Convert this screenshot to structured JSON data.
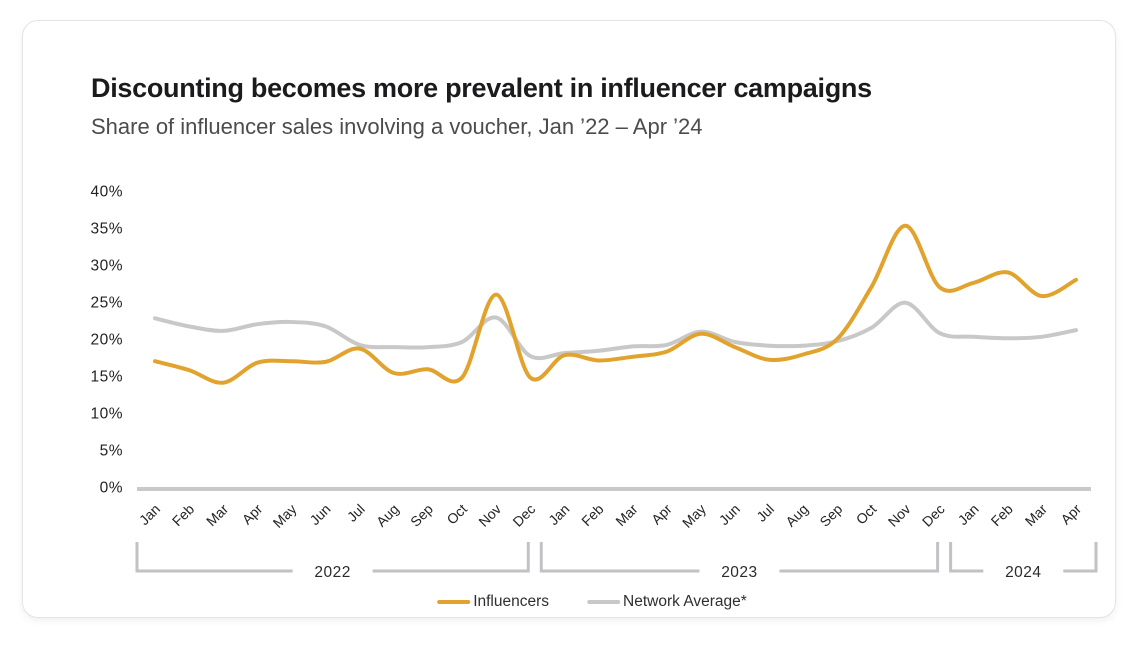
{
  "header": {
    "title": "Discounting becomes more prevalent in influencer campaigns",
    "subtitle": "Share of influencer sales involving a voucher, Jan ’22 – Apr ’24"
  },
  "legend": {
    "items": [
      {
        "label": "Influencers",
        "color": "#E1A32D"
      },
      {
        "label": "Network Average*",
        "color": "#C8C8C8"
      }
    ]
  },
  "chart_data": {
    "type": "line",
    "title": "Discounting becomes more prevalent in influencer campaigns",
    "subtitle": "Share of influencer sales involving a voucher, Jan ’22 – Apr ’24",
    "x_labels": [
      "Jan",
      "Feb",
      "Mar",
      "Apr",
      "May",
      "Jun",
      "Jul",
      "Aug",
      "Sep",
      "Oct",
      "Nov",
      "Dec",
      "Jan",
      "Feb",
      "Mar",
      "Apr",
      "May",
      "Jun",
      "Jul",
      "Aug",
      "Sep",
      "Oct",
      "Nov",
      "Dec",
      "Jan",
      "Feb",
      "Mar",
      "Apr"
    ],
    "year_groups": [
      {
        "label": "2022",
        "from": 0,
        "to": 11
      },
      {
        "label": "2023",
        "from": 12,
        "to": 23
      },
      {
        "label": "2024",
        "from": 24,
        "to": 27
      }
    ],
    "series": [
      {
        "name": "Influencers",
        "color": "#E1A32D",
        "values": [
          17.0,
          15.8,
          14.1,
          16.8,
          17.0,
          16.9,
          18.7,
          15.4,
          15.9,
          14.8,
          26.0,
          14.8,
          17.8,
          17.1,
          17.6,
          18.3,
          20.7,
          18.9,
          17.2,
          17.9,
          20.0,
          27.0,
          35.3,
          27.0,
          27.6,
          29.0,
          25.8,
          28.0
        ]
      },
      {
        "name": "Network Average*",
        "color": "#C8C8C8",
        "values": [
          22.8,
          21.7,
          21.1,
          22.0,
          22.3,
          21.7,
          19.2,
          18.9,
          18.9,
          19.6,
          22.9,
          17.7,
          18.1,
          18.4,
          19.0,
          19.2,
          21.0,
          19.6,
          19.1,
          19.1,
          19.7,
          21.5,
          24.9,
          20.8,
          20.3,
          20.1,
          20.3,
          21.2
        ]
      }
    ],
    "y_ticks": [
      0,
      5,
      10,
      15,
      20,
      25,
      30,
      35,
      40
    ],
    "y_tick_suffix": "%",
    "ylim": [
      0,
      40
    ],
    "grid": false,
    "legend_position": "bottom",
    "axis_line_color": "#C9C9CB",
    "bracket_color": "#C2C2C6"
  }
}
